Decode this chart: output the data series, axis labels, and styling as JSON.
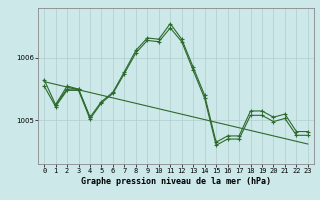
{
  "title": "Graphe pression niveau de la mer (hPa)",
  "bg_color": "#cce8e8",
  "grid_color": "#b0cccc",
  "line_color": "#2d6a2d",
  "x_labels": [
    "0",
    "1",
    "2",
    "3",
    "4",
    "5",
    "6",
    "7",
    "8",
    "9",
    "10",
    "11",
    "12",
    "13",
    "14",
    "15",
    "16",
    "17",
    "18",
    "19",
    "20",
    "21",
    "22",
    "23"
  ],
  "yticks": [
    1005,
    1006
  ],
  "ylim": [
    1004.3,
    1006.8
  ],
  "xlim": [
    -0.5,
    23.5
  ],
  "line1_x": [
    0,
    1,
    2,
    3,
    4,
    5,
    6,
    7,
    8,
    9,
    10,
    11,
    12,
    13,
    14,
    15,
    16,
    17,
    18,
    19,
    20,
    21,
    22,
    23
  ],
  "line1_y": [
    1005.65,
    1005.25,
    1005.55,
    1005.5,
    1005.05,
    1005.3,
    1005.45,
    1005.78,
    1006.12,
    1006.32,
    1006.3,
    1006.55,
    1006.3,
    1005.85,
    1005.4,
    1004.65,
    1004.75,
    1004.75,
    1005.15,
    1005.15,
    1005.05,
    1005.1,
    1004.82,
    1004.82
  ],
  "line2_x": [
    0,
    1,
    2,
    3,
    4,
    5,
    6,
    7,
    8,
    9,
    10,
    11,
    12,
    13,
    14,
    15,
    16,
    17,
    18,
    19,
    20,
    21,
    22,
    23
  ],
  "line2_y": [
    1005.55,
    1005.22,
    1005.48,
    1005.48,
    1005.02,
    1005.28,
    1005.43,
    1005.75,
    1006.08,
    1006.28,
    1006.26,
    1006.48,
    1006.26,
    1005.8,
    1005.35,
    1004.6,
    1004.7,
    1004.7,
    1005.08,
    1005.08,
    1004.98,
    1005.03,
    1004.76,
    1004.76
  ],
  "line3_x": [
    1,
    2,
    3,
    4
  ],
  "line3_y": [
    1005.25,
    1005.5,
    1005.5,
    1005.05
  ],
  "line4_x": [
    0,
    23
  ],
  "line4_y": [
    1005.62,
    1004.62
  ],
  "ylabel_fontsize": 5,
  "xlabel_fontsize": 6,
  "tick_labelsize": 5
}
